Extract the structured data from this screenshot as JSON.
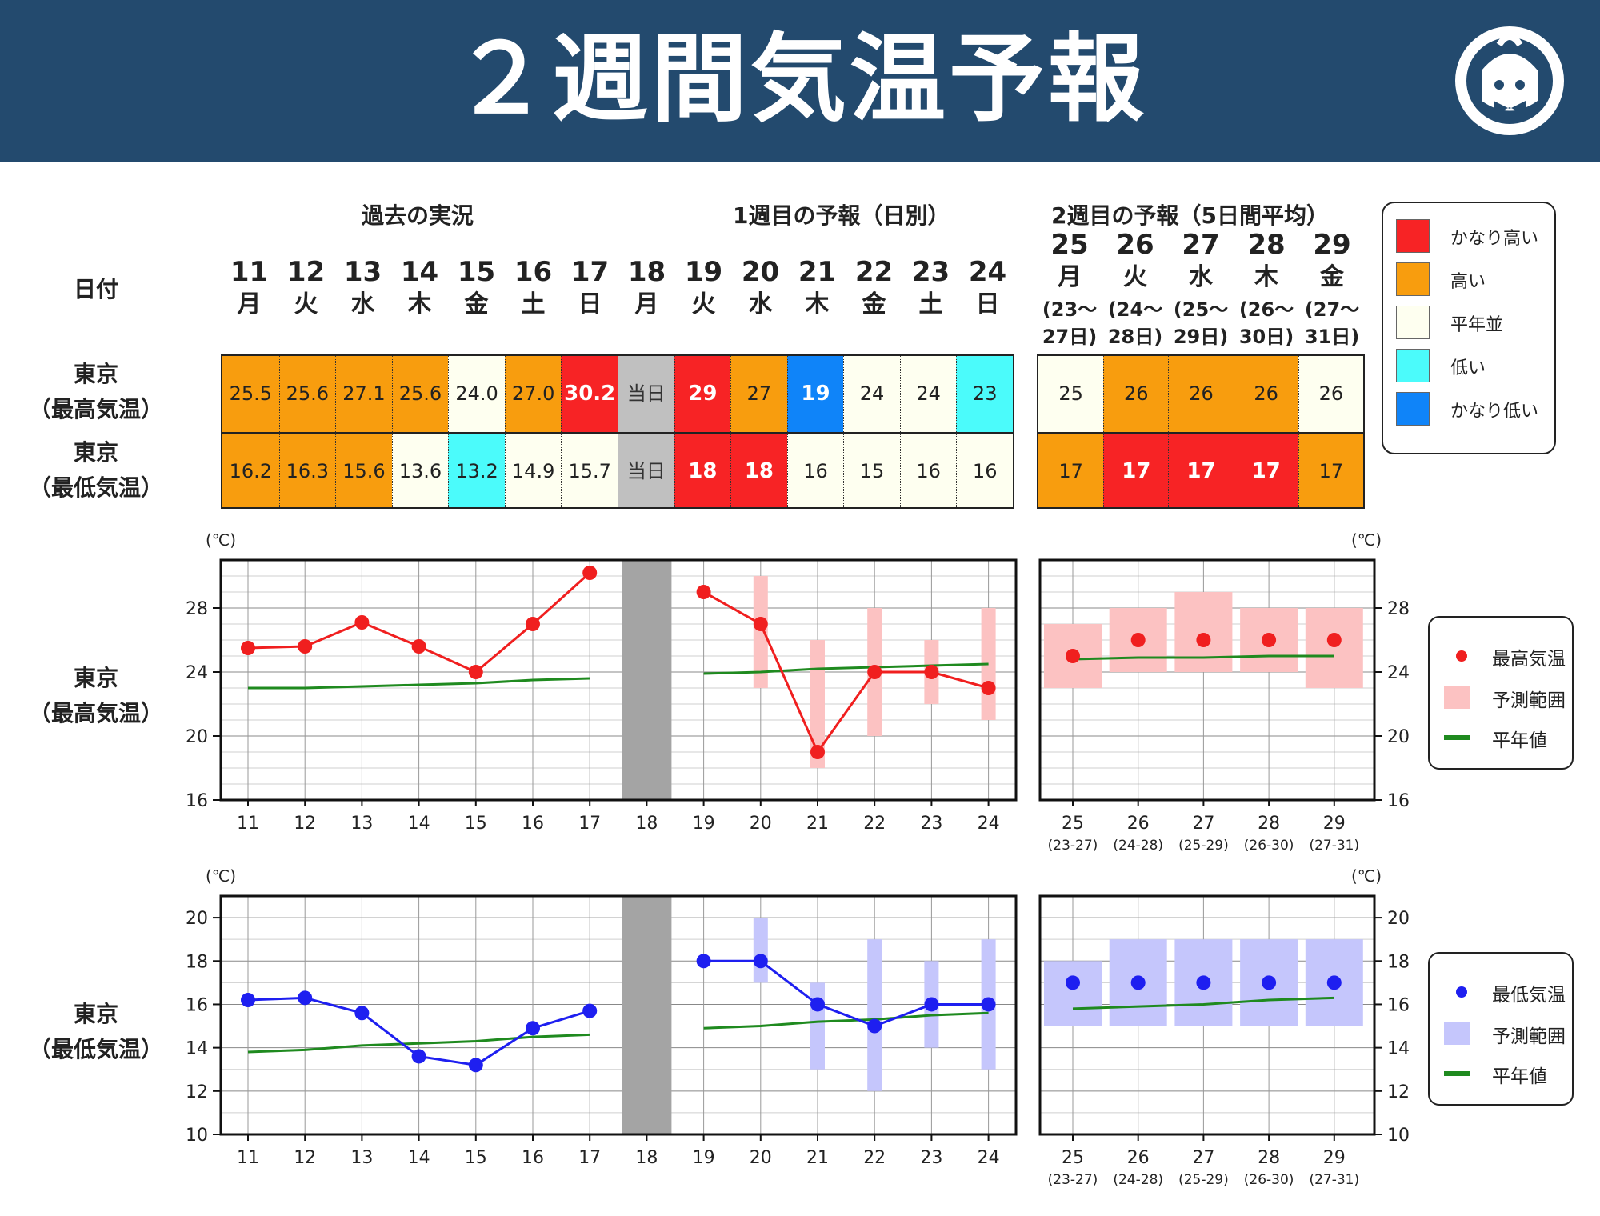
{
  "title": "２週間気温予報",
  "logo": "smiling-bowtie-mascot-icon",
  "colors": {
    "banner": "#234a6e",
    "very_high": "#f72325",
    "high": "#f89d0e",
    "normal": "#fefff0",
    "low": "#4bfbfb",
    "very_low": "#0f84f9",
    "today": "#c0c0c0",
    "max_line": "#f01f1f",
    "max_range": "#fcc2c2",
    "min_line": "#1e1ff0",
    "min_range": "#c5c6fc",
    "normal_line": "#1f8a1f"
  },
  "sections": {
    "past": "過去の実況",
    "week1": "1週目の予報（日別）",
    "week2": "2週目の予報（5日間平均）"
  },
  "date_label": "日付",
  "days": [
    {
      "num": "11",
      "day": "月"
    },
    {
      "num": "12",
      "day": "火"
    },
    {
      "num": "13",
      "day": "水"
    },
    {
      "num": "14",
      "day": "木"
    },
    {
      "num": "15",
      "day": "金"
    },
    {
      "num": "16",
      "day": "土"
    },
    {
      "num": "17",
      "day": "日"
    },
    {
      "num": "18",
      "day": "月"
    },
    {
      "num": "19",
      "day": "火"
    },
    {
      "num": "20",
      "day": "水"
    },
    {
      "num": "21",
      "day": "木"
    },
    {
      "num": "22",
      "day": "金"
    },
    {
      "num": "23",
      "day": "土"
    },
    {
      "num": "24",
      "day": "日"
    }
  ],
  "week2_days": [
    {
      "num": "25",
      "day": "月",
      "r1": "(23〜",
      "r2": "27日)"
    },
    {
      "num": "26",
      "day": "火",
      "r1": "(24〜",
      "r2": "28日)"
    },
    {
      "num": "27",
      "day": "水",
      "r1": "(25〜",
      "r2": "29日)"
    },
    {
      "num": "28",
      "day": "木",
      "r1": "(26〜",
      "r2": "30日)"
    },
    {
      "num": "29",
      "day": "金",
      "r1": "(27〜",
      "r2": "31日)"
    }
  ],
  "rows": {
    "max_label_1": "東京",
    "max_label_2": "（最高気温）",
    "min_label_1": "東京",
    "min_label_2": "（最低気温）"
  },
  "table_max": [
    {
      "v": "25.5",
      "c": "high"
    },
    {
      "v": "25.6",
      "c": "high"
    },
    {
      "v": "27.1",
      "c": "high"
    },
    {
      "v": "25.6",
      "c": "high"
    },
    {
      "v": "24.0",
      "c": "normal"
    },
    {
      "v": "27.0",
      "c": "high"
    },
    {
      "v": "30.2",
      "c": "very_high"
    },
    {
      "v": "当日",
      "c": "today"
    },
    {
      "v": "29",
      "c": "very_high"
    },
    {
      "v": "27",
      "c": "high"
    },
    {
      "v": "19",
      "c": "very_low"
    },
    {
      "v": "24",
      "c": "normal"
    },
    {
      "v": "24",
      "c": "normal"
    },
    {
      "v": "23",
      "c": "low"
    }
  ],
  "table_min": [
    {
      "v": "16.2",
      "c": "high"
    },
    {
      "v": "16.3",
      "c": "high"
    },
    {
      "v": "15.6",
      "c": "high"
    },
    {
      "v": "13.6",
      "c": "normal"
    },
    {
      "v": "13.2",
      "c": "low"
    },
    {
      "v": "14.9",
      "c": "normal"
    },
    {
      "v": "15.7",
      "c": "normal"
    },
    {
      "v": "当日",
      "c": "today"
    },
    {
      "v": "18",
      "c": "very_high"
    },
    {
      "v": "18",
      "c": "very_high"
    },
    {
      "v": "16",
      "c": "normal"
    },
    {
      "v": "15",
      "c": "normal"
    },
    {
      "v": "16",
      "c": "normal"
    },
    {
      "v": "16",
      "c": "normal"
    }
  ],
  "table_w2_max": [
    {
      "v": "25",
      "c": "normal"
    },
    {
      "v": "26",
      "c": "high"
    },
    {
      "v": "26",
      "c": "high"
    },
    {
      "v": "26",
      "c": "high"
    },
    {
      "v": "26",
      "c": "normal"
    }
  ],
  "table_w2_min": [
    {
      "v": "17",
      "c": "high"
    },
    {
      "v": "17",
      "c": "very_high"
    },
    {
      "v": "17",
      "c": "very_high"
    },
    {
      "v": "17",
      "c": "very_high"
    },
    {
      "v": "17",
      "c": "high"
    }
  ],
  "category_legend": [
    {
      "label": "かなり高い",
      "c": "very_high"
    },
    {
      "label": "高い",
      "c": "high"
    },
    {
      "label": "平年並",
      "c": "normal"
    },
    {
      "label": "低い",
      "c": "low"
    },
    {
      "label": "かなり低い",
      "c": "very_low"
    }
  ],
  "chart_labels": {
    "unit": "(℃)",
    "w2_ranges": [
      "(23-27)",
      "(24-28)",
      "(25-29)",
      "(26-30)",
      "(27-31)"
    ]
  },
  "chart_data": [
    {
      "type": "line",
      "title": "",
      "row_label": "東京（最高気温）",
      "ylabel": "(℃)",
      "ylim": [
        16,
        31
      ],
      "yticks": [
        16,
        20,
        24,
        28
      ],
      "grid": true,
      "legend_position": "right",
      "x_daily": [
        "11",
        "12",
        "13",
        "14",
        "15",
        "16",
        "17",
        "18",
        "19",
        "20",
        "21",
        "22",
        "23",
        "24"
      ],
      "x_week2": [
        "25",
        "26",
        "27",
        "28",
        "29"
      ],
      "x_week2_ranges": [
        "(23-27)",
        "(24-28)",
        "(25-29)",
        "(26-30)",
        "(27-31)"
      ],
      "today_shaded": "18",
      "series": [
        {
          "name": "最高気温",
          "observed": [
            25.5,
            25.6,
            27.1,
            25.6,
            24.0,
            27.0,
            30.2
          ],
          "forecast_daily": [
            29,
            27,
            19,
            24,
            24,
            23
          ],
          "forecast_week2": [
            25,
            26,
            26,
            26,
            26
          ]
        },
        {
          "name": "予測範囲",
          "daily_ranges": [
            null,
            [
              23,
              30
            ],
            [
              18,
              26
            ],
            [
              20,
              28
            ],
            [
              22,
              26
            ],
            [
              21,
              28
            ]
          ],
          "week2_ranges": [
            [
              23,
              27
            ],
            [
              24,
              28
            ],
            [
              24,
              29
            ],
            [
              24,
              28
            ],
            [
              23,
              28
            ]
          ]
        },
        {
          "name": "平年値",
          "observed_normal": [
            23.0,
            23.0,
            23.1,
            23.2,
            23.3,
            23.5,
            23.6
          ],
          "daily_normal": [
            23.9,
            24.0,
            24.2,
            24.3,
            24.4,
            24.5
          ],
          "week2_normal": [
            24.8,
            24.9,
            24.9,
            25.0,
            25.0
          ]
        }
      ]
    },
    {
      "type": "line",
      "title": "",
      "row_label": "東京（最低気温）",
      "ylabel": "(℃)",
      "ylim": [
        10,
        21
      ],
      "yticks": [
        10,
        12,
        14,
        16,
        18,
        20
      ],
      "grid": true,
      "legend_position": "right",
      "x_daily": [
        "11",
        "12",
        "13",
        "14",
        "15",
        "16",
        "17",
        "18",
        "19",
        "20",
        "21",
        "22",
        "23",
        "24"
      ],
      "x_week2": [
        "25",
        "26",
        "27",
        "28",
        "29"
      ],
      "x_week2_ranges": [
        "(23-27)",
        "(24-28)",
        "(25-29)",
        "(26-30)",
        "(27-31)"
      ],
      "today_shaded": "18",
      "series": [
        {
          "name": "最低気温",
          "observed": [
            16.2,
            16.3,
            15.6,
            13.6,
            13.2,
            14.9,
            15.7
          ],
          "forecast_daily": [
            18,
            18,
            16,
            15,
            16,
            16
          ],
          "forecast_week2": [
            17,
            17,
            17,
            17,
            17
          ]
        },
        {
          "name": "予測範囲",
          "daily_ranges": [
            null,
            [
              17,
              20
            ],
            [
              13,
              17
            ],
            [
              12,
              19
            ],
            [
              14,
              18
            ],
            [
              13,
              19
            ]
          ],
          "week2_ranges": [
            [
              15,
              18
            ],
            [
              15,
              19
            ],
            [
              15,
              19
            ],
            [
              15,
              19
            ],
            [
              15,
              19
            ]
          ]
        },
        {
          "name": "平年値",
          "observed_normal": [
            13.8,
            13.9,
            14.1,
            14.2,
            14.3,
            14.5,
            14.6
          ],
          "daily_normal": [
            14.9,
            15.0,
            15.2,
            15.3,
            15.5,
            15.6
          ],
          "week2_normal": [
            15.8,
            15.9,
            16.0,
            16.2,
            16.3
          ]
        }
      ]
    }
  ]
}
